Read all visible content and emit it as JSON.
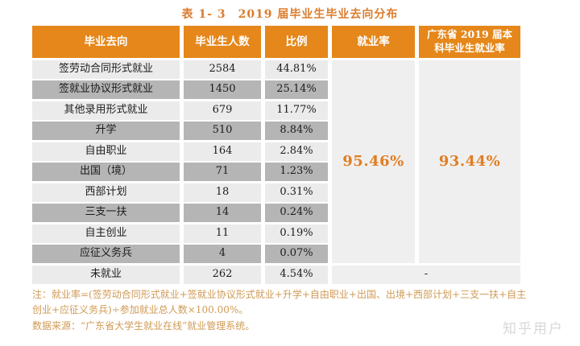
{
  "title": "表 1- 3　2019 届毕业生毕业去向分布",
  "table": {
    "headers": {
      "destination": "毕业去向",
      "count": "毕业生人数",
      "proportion": "比例",
      "employment_rate": "就业率",
      "province_rate": "广东省 2019 届本\n科毕业生就业率"
    },
    "rows": [
      {
        "label": "签劳动合同形式就业",
        "count": "2584",
        "percent": "44.81%"
      },
      {
        "label": "签就业协议形式就业",
        "count": "1450",
        "percent": "25.14%"
      },
      {
        "label": "其他录用形式就业",
        "count": "679",
        "percent": "11.77%"
      },
      {
        "label": "升学",
        "count": "510",
        "percent": "8.84%"
      },
      {
        "label": "自由职业",
        "count": "164",
        "percent": "2.84%"
      },
      {
        "label": "出国（境）",
        "count": "71",
        "percent": "1.23%"
      },
      {
        "label": "西部计划",
        "count": "18",
        "percent": "0.31%"
      },
      {
        "label": "三支一扶",
        "count": "14",
        "percent": "0.24%"
      },
      {
        "label": "自主创业",
        "count": "11",
        "percent": "0.19%"
      },
      {
        "label": "应征义务兵",
        "count": "4",
        "percent": "0.07%"
      },
      {
        "label": "未就业",
        "count": "262",
        "percent": "4.54%"
      }
    ],
    "employment_rate_value": "95.46%",
    "province_rate_value": "93.44%",
    "unemployed_rate_value": "-"
  },
  "notes": {
    "formula": "注：就业率=(签劳动合同形式就业+签就业协议形式就业+升学+自由职业+出国、出境+西部计划+三支一扶+自主创业+应征义务兵)÷参加就业总人数×100.00%。",
    "source": "数据来源：“广东省大学生就业在线”就业管理系统。"
  },
  "watermark": "知乎用户",
  "colors": {
    "header_bg": "#e5871a",
    "title_text": "#db7c2c",
    "note_text": "#d09a55",
    "highlight_percent": "#e07e22",
    "row_light": "#ebebeb",
    "row_dark": "#b5b5b5",
    "merged_cell_bg": "#f0efef",
    "watermark_text": "#d8d8d8"
  }
}
